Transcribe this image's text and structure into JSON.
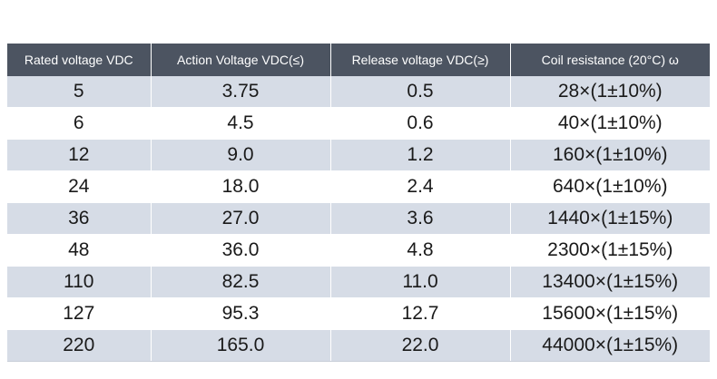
{
  "table": {
    "headers": [
      "Rated voltage VDC",
      "Action Voltage VDC(≤)",
      "Release voltage VDC(≥)",
      "Coil resistance (20°C) ω"
    ],
    "rows": [
      [
        "5",
        "3.75",
        "0.5",
        "28×(1±10%)"
      ],
      [
        "6",
        "4.5",
        "0.6",
        "40×(1±10%)"
      ],
      [
        "12",
        "9.0",
        "1.2",
        "160×(1±10%)"
      ],
      [
        "24",
        "18.0",
        "2.4",
        "640×(1±10%)"
      ],
      [
        "36",
        "27.0",
        "3.6",
        "1440×(1±15%)"
      ],
      [
        "48",
        "36.0",
        "4.8",
        "2300×(1±15%)"
      ],
      [
        "110",
        "82.5",
        "11.0",
        "13400×(1±15%)"
      ],
      [
        "127",
        "95.3",
        "12.7",
        "15600×(1±15%)"
      ],
      [
        "220",
        "165.0",
        "22.0",
        "44000×(1±15%)"
      ]
    ]
  },
  "colors": {
    "header_bg": "#4c5461",
    "stripe_bg": "#d6dce6"
  }
}
